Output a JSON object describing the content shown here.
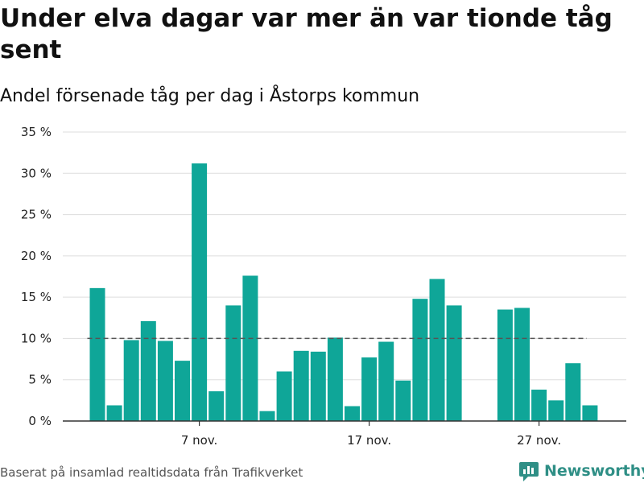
{
  "title": "Under elva dagar var mer än var tionde tåg sent",
  "subtitle": "Andel försenade tåg per dag i Åstorps kommun",
  "source": "Baserat på insamlad realtidsdata från Trafikverket",
  "brand": {
    "name": "Newsworthy",
    "icon": "newsworthy-logo-icon",
    "color": "#2f8f86"
  },
  "colors": {
    "bar": "#0fa698",
    "reference_line": "#555555",
    "grid": "#dddddd"
  },
  "chart_data": {
    "type": "bar",
    "x_unit": "day",
    "x": [
      "2024-11-01",
      "2024-11-02",
      "2024-11-03",
      "2024-11-04",
      "2024-11-05",
      "2024-11-06",
      "2024-11-07",
      "2024-11-08",
      "2024-11-09",
      "2024-11-10",
      "2024-11-11",
      "2024-11-12",
      "2024-11-13",
      "2024-11-14",
      "2024-11-15",
      "2024-11-16",
      "2024-11-17",
      "2024-11-18",
      "2024-11-19",
      "2024-11-20",
      "2024-11-21",
      "2024-11-22",
      "2024-11-23",
      "2024-11-24",
      "2024-11-25",
      "2024-11-26",
      "2024-11-27",
      "2024-11-28",
      "2024-11-29",
      "2024-11-30"
    ],
    "values": [
      16.1,
      1.9,
      9.8,
      12.1,
      9.7,
      7.3,
      31.2,
      3.6,
      14.0,
      17.6,
      1.2,
      6.0,
      8.5,
      8.4,
      10.1,
      1.8,
      7.7,
      9.6,
      4.9,
      14.8,
      17.2,
      14.0,
      null,
      null,
      13.5,
      13.7,
      3.8,
      2.5,
      7.0,
      1.9
    ],
    "ylim": [
      0,
      35
    ],
    "yticks": [
      0,
      5,
      10,
      15,
      20,
      25,
      30,
      35
    ],
    "ytick_labels": [
      "0 %",
      "5 %",
      "10 %",
      "15 %",
      "20 %",
      "25 %",
      "30 %",
      "35 %"
    ],
    "xticks": [
      "2024-11-07",
      "2024-11-17",
      "2024-11-27"
    ],
    "xtick_labels": [
      "7 nov.",
      "17 nov.",
      "27 nov."
    ],
    "reference_line": {
      "value": 10,
      "style": "dashed",
      "from": "2024-11-01",
      "to": "2024-11-30"
    },
    "grid": true,
    "legend": "none"
  }
}
